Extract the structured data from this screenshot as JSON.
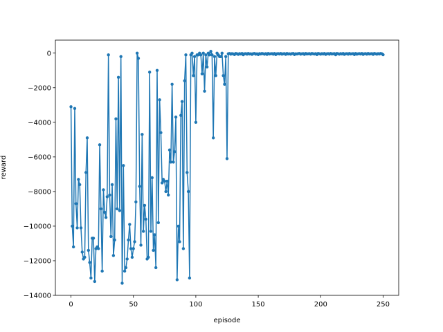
{
  "chart_data": {
    "type": "line",
    "xlabel": "episode",
    "ylabel": "reward",
    "x": [
      0,
      1,
      2,
      3,
      4,
      5,
      6,
      7,
      8,
      9,
      10,
      11,
      12,
      13,
      14,
      15,
      16,
      17,
      18,
      19,
      20,
      21,
      22,
      23,
      24,
      25,
      26,
      27,
      28,
      29,
      30,
      31,
      32,
      33,
      34,
      35,
      36,
      37,
      38,
      39,
      40,
      41,
      42,
      43,
      44,
      45,
      46,
      47,
      48,
      49,
      50,
      51,
      52,
      53,
      54,
      55,
      56,
      57,
      58,
      59,
      60,
      61,
      62,
      63,
      64,
      65,
      66,
      67,
      68,
      69,
      70,
      71,
      72,
      73,
      74,
      75,
      76,
      77,
      78,
      79,
      80,
      81,
      82,
      83,
      84,
      85,
      86,
      87,
      88,
      89,
      90,
      91,
      92,
      93,
      94,
      95,
      96,
      97,
      98,
      99,
      100,
      101,
      102,
      103,
      104,
      105,
      106,
      107,
      108,
      109,
      110,
      111,
      112,
      113,
      114,
      115,
      116,
      117,
      118,
      119,
      120,
      121,
      122,
      123,
      124,
      125,
      126,
      127,
      128,
      129,
      130,
      131,
      132,
      133,
      134,
      135,
      136,
      137,
      138,
      139,
      140,
      141,
      142,
      143,
      144,
      145,
      146,
      147,
      148,
      149,
      150,
      151,
      152,
      153,
      154,
      155,
      156,
      157,
      158,
      159,
      160,
      161,
      162,
      163,
      164,
      165,
      166,
      167,
      168,
      169,
      170,
      171,
      172,
      173,
      174,
      175,
      176,
      177,
      178,
      179,
      180,
      181,
      182,
      183,
      184,
      185,
      186,
      187,
      188,
      189,
      190,
      191,
      192,
      193,
      194,
      195,
      196,
      197,
      198,
      199,
      200,
      201,
      202,
      203,
      204,
      205,
      206,
      207,
      208,
      209,
      210,
      211,
      212,
      213,
      214,
      215,
      216,
      217,
      218,
      219,
      220,
      221,
      222,
      223,
      224,
      225,
      226,
      227,
      228,
      229,
      230,
      231,
      232,
      233,
      234,
      235,
      236,
      237,
      238,
      239,
      240,
      241,
      242,
      243,
      244,
      245,
      246,
      247,
      248,
      249,
      250
    ],
    "series": [
      {
        "color": "#1f77b4",
        "values": [
          -3100,
          -10000,
          -11200,
          -3200,
          -8700,
          -10100,
          -7300,
          -7600,
          -10100,
          -11500,
          -11900,
          -11800,
          -6900,
          -4900,
          -11400,
          -12100,
          -13000,
          -10700,
          -10700,
          -13200,
          -11300,
          -11200,
          -11300,
          -5300,
          -9000,
          -12600,
          -7900,
          -9200,
          -9500,
          -8300,
          -100,
          -8200,
          -10600,
          -7600,
          -11700,
          -10800,
          -3800,
          -9000,
          -1400,
          -9100,
          -200,
          -13300,
          -6500,
          -12600,
          -12400,
          -11900,
          -10800,
          -9900,
          -11300,
          -11800,
          -11300,
          -10900,
          -8600,
          0,
          -300,
          -7700,
          -11100,
          -4700,
          -10300,
          -8800,
          -9600,
          -11900,
          -11800,
          -1100,
          -10300,
          -7200,
          -11400,
          -10500,
          -12400,
          -1000,
          -9800,
          -2700,
          -4600,
          -7500,
          -7300,
          -7400,
          -8000,
          -7400,
          -8200,
          -5600,
          -6300,
          -1800,
          -6300,
          -5700,
          -3700,
          -13100,
          -10000,
          -10900,
          -3600,
          -2800,
          -11300,
          -1600,
          -100,
          -6900,
          -8000,
          -13000,
          -100,
          0,
          -1300,
          -200,
          -4000,
          -100,
          -100,
          0,
          -100,
          -1200,
          0,
          -2200,
          -100,
          -800,
          0,
          -100,
          100,
          -100,
          -4900,
          -200,
          -1300,
          0,
          -100,
          -200,
          -200,
          0,
          -1300,
          -1800,
          -200,
          -6100,
          -40,
          -20,
          -60,
          -30,
          -50,
          -80,
          -20,
          -40,
          -70,
          -30,
          -50,
          -20,
          -90,
          -40,
          -30,
          -60,
          -20,
          -50,
          -40,
          -70,
          -30,
          -20,
          -60,
          -40,
          -80,
          -30,
          -50,
          -20,
          -40,
          -60,
          -30,
          -70,
          -20,
          -50,
          -40,
          -30,
          -60,
          -20,
          -80,
          -40,
          -30,
          -50,
          -20,
          -60,
          -40,
          -30,
          -70,
          -20,
          -50,
          -40,
          -60,
          -30,
          -20,
          -80,
          -40,
          -50,
          -30,
          -20,
          -60,
          -40,
          -30,
          -70,
          -20,
          -50,
          -40,
          -30,
          -60,
          -20,
          -40,
          -50,
          -30,
          -80,
          -20,
          -40,
          -60,
          -30,
          -50,
          -20,
          -70,
          -40,
          -30,
          -60,
          -20,
          -50,
          -40,
          -30,
          -90,
          -20,
          -40,
          -60,
          -30,
          -50,
          -20,
          -70,
          -40,
          -30,
          -60,
          -20,
          -50,
          -40,
          -30,
          -80,
          -20,
          -60,
          -40,
          -30,
          -50,
          -20,
          -70,
          -40,
          -30,
          -60,
          -20,
          -50,
          -40,
          -30,
          -70,
          -20,
          -40,
          -60,
          -30,
          -50,
          -20,
          -40,
          -90
        ]
      }
    ],
    "xlim": [
      -12.5,
      262.5
    ],
    "xticks": [
      0,
      50,
      100,
      150,
      200,
      250
    ],
    "ylim": [
      -14000,
      750
    ],
    "yticks": [
      {
        "value": -14000,
        "label": "−14000"
      },
      {
        "value": -12000,
        "label": "−12000"
      },
      {
        "value": -10000,
        "label": "−10000"
      },
      {
        "value": -8000,
        "label": "−8000"
      },
      {
        "value": -6000,
        "label": "−6000"
      },
      {
        "value": -4000,
        "label": "−4000"
      },
      {
        "value": -2000,
        "label": "−2000"
      },
      0
    ],
    "grid": false
  }
}
